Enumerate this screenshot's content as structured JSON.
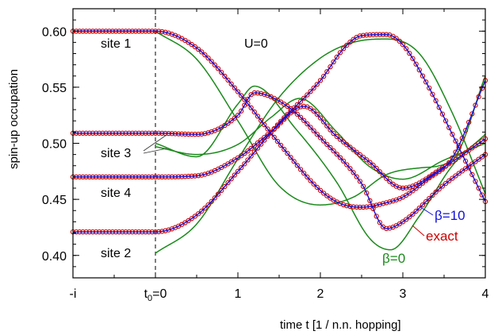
{
  "chart_data": {
    "type": "line",
    "title": "",
    "xlabel": "time t   [1 / n.n. hopping]",
    "ylabel": "spin-up occupation",
    "xlim": [
      -1,
      4
    ],
    "ylim": [
      0.38,
      0.62
    ],
    "x_ticks": [
      {
        "value": -1,
        "label": "-i"
      },
      {
        "value": 0,
        "label": "t0=0"
      },
      {
        "value": 1,
        "label": "1"
      },
      {
        "value": 2,
        "label": "2"
      },
      {
        "value": 3,
        "label": "3"
      },
      {
        "value": 4,
        "label": "4"
      }
    ],
    "x_tick_t0": {
      "main": "t",
      "sub": "0",
      "rest": "=0"
    },
    "y_ticks": [
      0.4,
      0.45,
      0.5,
      0.55,
      0.6
    ],
    "y_tick_labels": [
      "0.40",
      "0.45",
      "0.50",
      "0.55",
      "0.60"
    ],
    "annotations": {
      "interaction": "U=0",
      "sites": [
        "site 1",
        "site 3",
        "site 4",
        "site 2"
      ]
    },
    "legend_labels": {
      "beta10": "β=10",
      "exact": "exact",
      "beta0": "β=0"
    },
    "colors": {
      "exact": "#cc0000",
      "beta10": "#1010dd",
      "beta0": "#1a8a1a"
    },
    "series": [
      {
        "name": "exact",
        "marker": "circle",
        "color": "#cc0000",
        "site_values": {
          "site 1": {
            "x": [
              -1,
              0,
              0.5,
              1.0,
              1.5,
              2.0,
              2.25,
              2.5,
              2.8,
              3.0,
              3.3,
              3.6,
              4.0
            ],
            "y": [
              0.6,
              0.6,
              0.585,
              0.546,
              0.5,
              0.458,
              0.446,
              0.443,
              0.447,
              0.452,
              0.468,
              0.487,
              0.556
            ]
          },
          "site 2": {
            "x": [
              -1,
              0,
              0.5,
              1.0,
              1.5,
              2.0,
              2.3,
              2.5,
              2.8,
              3.0,
              3.3,
              3.6,
              4.0
            ],
            "y": [
              0.421,
              0.421,
              0.436,
              0.475,
              0.518,
              0.556,
              0.586,
              0.596,
              0.597,
              0.588,
              0.552,
              0.508,
              0.448
            ]
          },
          "site 3": {
            "x": [
              -1,
              0,
              0.5,
              1.0,
              1.2,
              1.6,
              2.0,
              2.5,
              2.8,
              3.0,
              3.5,
              4.0
            ],
            "y": [
              0.509,
              0.509,
              0.508,
              0.525,
              0.545,
              0.533,
              0.505,
              0.464,
              0.424,
              0.43,
              0.463,
              0.49
            ]
          },
          "site 4": {
            "x": [
              -1,
              0,
              0.5,
              1.0,
              1.4,
              1.8,
              2.2,
              2.6,
              3.0,
              3.5,
              4.0
            ],
            "y": [
              0.47,
              0.47,
              0.471,
              0.487,
              0.51,
              0.533,
              0.506,
              0.483,
              0.46,
              0.479,
              0.504
            ]
          }
        }
      },
      {
        "name": "β=10",
        "marker": "none",
        "color": "#1010dd",
        "site_values": {
          "site 1": {
            "x": [
              -1,
              0,
              0.5,
              1.0,
              1.5,
              2.0,
              2.25,
              2.5,
              2.8,
              3.0,
              3.3,
              3.6,
              4.0
            ],
            "y": [
              0.6,
              0.6,
              0.585,
              0.546,
              0.5,
              0.458,
              0.446,
              0.443,
              0.447,
              0.452,
              0.468,
              0.487,
              0.556
            ]
          },
          "site 2": {
            "x": [
              -1,
              0,
              0.5,
              1.0,
              1.5,
              2.0,
              2.3,
              2.5,
              2.8,
              3.0,
              3.3,
              3.6,
              4.0
            ],
            "y": [
              0.421,
              0.421,
              0.436,
              0.475,
              0.518,
              0.556,
              0.586,
              0.596,
              0.597,
              0.588,
              0.552,
              0.508,
              0.448
            ]
          },
          "site 3": {
            "x": [
              -1,
              0,
              0.5,
              1.0,
              1.2,
              1.6,
              2.0,
              2.5,
              2.8,
              3.0,
              3.5,
              4.0
            ],
            "y": [
              0.509,
              0.509,
              0.508,
              0.525,
              0.545,
              0.533,
              0.505,
              0.464,
              0.424,
              0.43,
              0.463,
              0.49
            ]
          },
          "site 4": {
            "x": [
              -1,
              0,
              0.5,
              1.0,
              1.4,
              1.8,
              2.2,
              2.6,
              3.0,
              3.5,
              4.0
            ],
            "y": [
              0.47,
              0.47,
              0.471,
              0.487,
              0.51,
              0.533,
              0.506,
              0.483,
              0.46,
              0.479,
              0.504
            ]
          }
        }
      },
      {
        "name": "β=0",
        "marker": "none",
        "color": "#1a8a1a",
        "site_values": {
          "site 1": {
            "x": [
              0,
              0.5,
              1.0,
              1.5,
              2.0,
              2.4,
              2.8,
              3.2,
              3.6,
              4.0
            ],
            "y": [
              0.6,
              0.575,
              0.52,
              0.462,
              0.445,
              0.452,
              0.472,
              0.478,
              0.485,
              0.56
            ]
          },
          "site 2": {
            "x": [
              0,
              0.5,
              1.0,
              1.5,
              2.0,
              2.4,
              2.8,
              3.2,
              3.6,
              4.0
            ],
            "y": [
              0.402,
              0.428,
              0.486,
              0.541,
              0.576,
              0.59,
              0.593,
              0.58,
              0.527,
              0.455
            ]
          },
          "site 3": {
            "x": [
              0,
              0.5,
              1.0,
              1.2,
              1.7,
              2.2,
              2.6,
              2.85,
              3.2,
              3.6,
              4.0
            ],
            "y": [
              0.5,
              0.488,
              0.535,
              0.551,
              0.513,
              0.465,
              0.415,
              0.405,
              0.435,
              0.48,
              0.508
            ]
          },
          "site 4": {
            "x": [
              0,
              0.5,
              1.0,
              1.4,
              1.75,
              2.2,
              2.6,
              3.0,
              3.5,
              4.0
            ],
            "y": [
              0.497,
              0.49,
              0.499,
              0.523,
              0.54,
              0.51,
              0.479,
              0.468,
              0.485,
              0.5
            ]
          }
        }
      }
    ]
  }
}
